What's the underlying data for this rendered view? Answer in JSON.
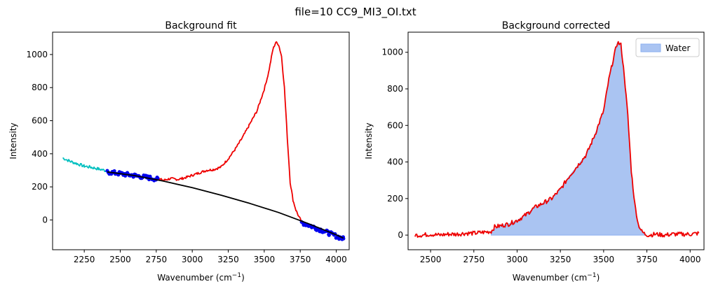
{
  "figure_title": "file=10 CC9_MI3_OI.txt",
  "chart_data": [
    {
      "type": "line",
      "title": "Background fit",
      "xlabel": "Wavenumber (cm",
      "xlabel_sup": "−1",
      "xlabel_close": ")",
      "ylabel": "Intensity",
      "xlim": [
        2030,
        4090
      ],
      "ylim": [
        -180,
        1135
      ],
      "xticks": [
        2250,
        2500,
        2750,
        3000,
        3250,
        3500,
        3750,
        4000
      ],
      "yticks": [
        0,
        200,
        400,
        600,
        800,
        1000
      ],
      "grid": false,
      "legend": null,
      "series": [
        {
          "kind": "line",
          "color": "#00bfbf",
          "noise": 9,
          "step": 6,
          "x": [
            2100,
            2150,
            2200,
            2250,
            2300,
            2350,
            2400
          ],
          "y": [
            375,
            355,
            340,
            325,
            318,
            308,
            298
          ]
        },
        {
          "kind": "line",
          "color": "#ee0000",
          "noise": 7,
          "step": 5,
          "x": [
            2760,
            2800,
            2850,
            2900,
            2950,
            3000,
            3050,
            3100,
            3150,
            3200,
            3250,
            3300,
            3350,
            3400,
            3450,
            3500,
            3530,
            3560,
            3580,
            3600,
            3620,
            3640,
            3660,
            3680,
            3700,
            3720,
            3740,
            3760
          ],
          "y": [
            250,
            240,
            250,
            245,
            255,
            270,
            285,
            300,
            305,
            320,
            370,
            430,
            500,
            580,
            660,
            790,
            890,
            1030,
            1075,
            1060,
            990,
            800,
            500,
            230,
            120,
            60,
            20,
            -10
          ]
        },
        {
          "kind": "scatter",
          "color": "#0000ee",
          "noise": 12,
          "step": 7,
          "x": [
            2410,
            2500,
            2600,
            2700,
            2760
          ],
          "y": [
            290,
            280,
            268,
            255,
            245
          ]
        },
        {
          "kind": "scatter",
          "color": "#0000ee",
          "noise": 12,
          "step": 7,
          "x": [
            3760,
            3850,
            3950,
            4050
          ],
          "y": [
            -15,
            -45,
            -80,
            -115
          ]
        },
        {
          "kind": "line",
          "color": "#000000",
          "noise": 0,
          "step": 0,
          "x": [
            2410,
            2600,
            2800,
            3000,
            3200,
            3400,
            3600,
            3800,
            4000,
            4050
          ],
          "y": [
            290,
            268,
            235,
            195,
            150,
            100,
            45,
            -20,
            -90,
            -110
          ]
        }
      ]
    },
    {
      "type": "area",
      "title": "Background corrected",
      "xlabel": "Wavenumber (cm",
      "xlabel_sup": "−1",
      "xlabel_close": ")",
      "ylabel": "Intensity",
      "xlim": [
        2370,
        4080
      ],
      "ylim": [
        -80,
        1110
      ],
      "xticks": [
        2500,
        2750,
        3000,
        3250,
        3500,
        3750,
        4000
      ],
      "yticks": [
        0,
        200,
        400,
        600,
        800,
        1000
      ],
      "grid": false,
      "legend": {
        "placement": "upper right",
        "entries": [
          "Water"
        ]
      },
      "series": [
        {
          "kind": "fill",
          "name": "Water",
          "color": "#aac4f2",
          "edge": "#8aaff0",
          "x": [
            2850,
            2900,
            2950,
            3000,
            3050,
            3100,
            3150,
            3200,
            3250,
            3300,
            3350,
            3400,
            3450,
            3500,
            3530,
            3560,
            3580,
            3600,
            3620,
            3640,
            3660,
            3680,
            3700,
            3720,
            3740
          ],
          "y": [
            20,
            50,
            60,
            80,
            110,
            150,
            175,
            200,
            250,
            320,
            380,
            440,
            550,
            680,
            850,
            980,
            1055,
            1040,
            870,
            650,
            350,
            170,
            60,
            20,
            0
          ]
        },
        {
          "kind": "line",
          "color": "#ee0000",
          "noise": 12,
          "step": 5,
          "x": [
            2410,
            2450,
            2500,
            2550,
            2600,
            2650,
            2700,
            2750,
            2800,
            2850,
            2870,
            2900,
            2950,
            3000,
            3050,
            3100,
            3150,
            3200,
            3250,
            3300,
            3350,
            3400,
            3450,
            3500,
            3530,
            3560,
            3580,
            3600,
            3620,
            3640,
            3660,
            3680,
            3700,
            3720,
            3740,
            3760,
            3800,
            3850,
            3900,
            3950,
            4000,
            4050
          ],
          "y": [
            0,
            0,
            5,
            0,
            5,
            5,
            10,
            10,
            15,
            20,
            45,
            50,
            60,
            80,
            110,
            150,
            175,
            200,
            250,
            320,
            380,
            440,
            550,
            680,
            850,
            980,
            1055,
            1040,
            870,
            650,
            350,
            170,
            60,
            20,
            5,
            0,
            5,
            0,
            5,
            5,
            5,
            10
          ]
        }
      ]
    }
  ]
}
